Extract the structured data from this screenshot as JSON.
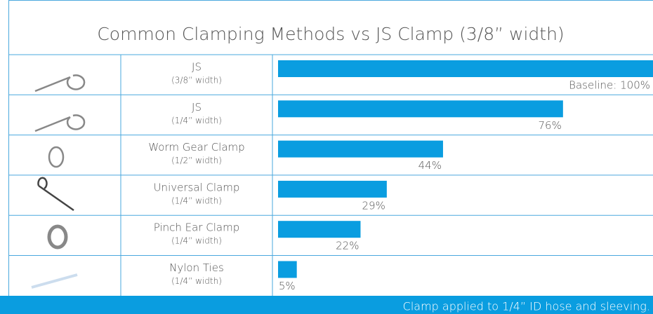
{
  "chart_data": {
    "type": "bar",
    "orientation": "horizontal",
    "title": "Common Clamping Methods vs JS Clamp (3/8” width)",
    "categories": [
      "JS",
      "JS",
      "Worm Gear Clamp",
      "Universal Clamp",
      "Pinch Ear Clamp",
      "Nylon Ties"
    ],
    "category_widths": [
      "(3/8” width)",
      "(1/4” width)",
      "(1/2” width)",
      "(1/4” width)",
      "(1/4” width)",
      "(1/4” width)"
    ],
    "values": [
      100,
      76,
      44,
      29,
      22,
      5
    ],
    "value_labels": [
      "Baseline: 100%",
      "76%",
      "44%",
      "29%",
      "22%",
      "5%"
    ],
    "color": "#0a9de0",
    "xlim": [
      0,
      100
    ],
    "footnote": "Clamp applied to 1/4” ID hose and sleeving."
  }
}
